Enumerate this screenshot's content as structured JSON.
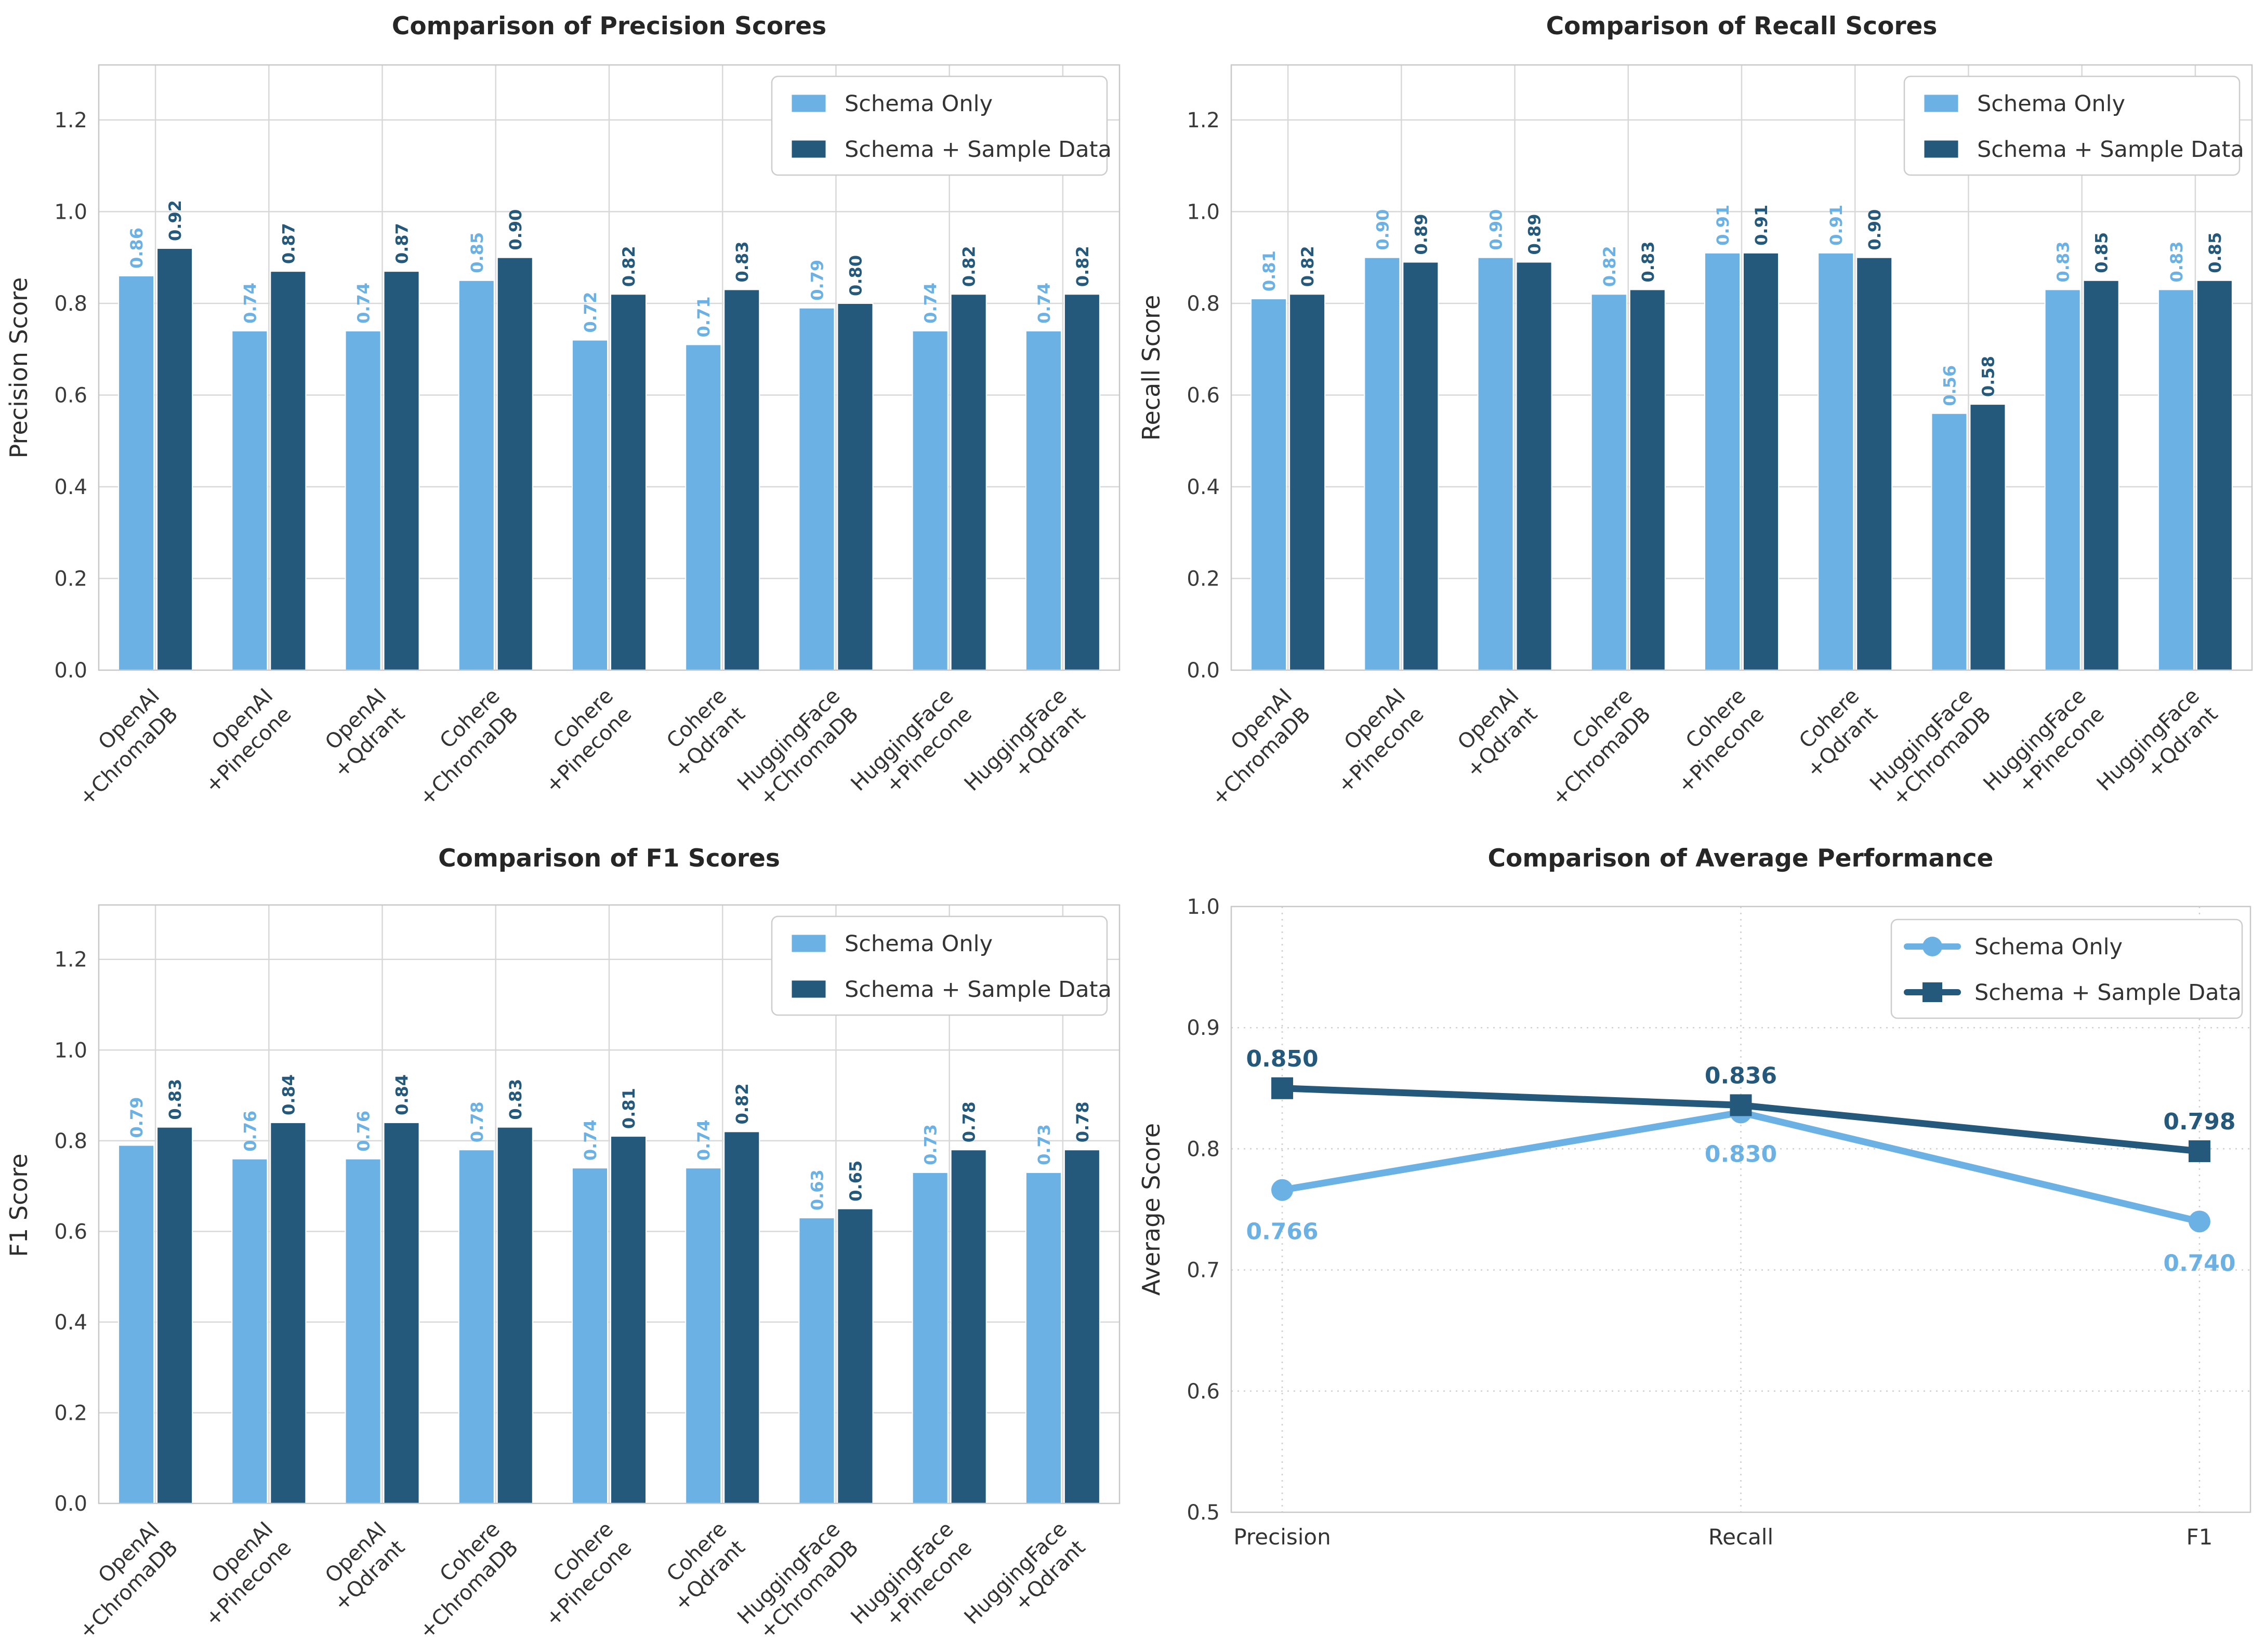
{
  "colors": {
    "schema_only": "#6bb1e3",
    "schema_sample": "#25597b",
    "grid": "#d8d8d8",
    "grid_dashed": "#cfcfcf",
    "spine": "#c8c8c8",
    "tick_text": "#3b3b3b",
    "title_text": "#262626",
    "background": "#ffffff",
    "legend_border": "#cccccc"
  },
  "legend_labels": [
    "Schema Only",
    "Schema + Sample Data"
  ],
  "shared_categories": [
    [
      "OpenAI",
      "+ChromaDB"
    ],
    [
      "OpenAI",
      "+Pinecone"
    ],
    [
      "OpenAI",
      "+Qdrant"
    ],
    [
      "Cohere",
      "+ChromaDB"
    ],
    [
      "Cohere",
      "+Pinecone"
    ],
    [
      "Cohere",
      "+Qdrant"
    ],
    [
      "HuggingFace",
      "+ChromaDB"
    ],
    [
      "HuggingFace",
      "+Pinecone"
    ],
    [
      "HuggingFace",
      "+Qdrant"
    ]
  ],
  "chart_data": [
    {
      "type": "bar",
      "title": "Comparison of Precision Scores",
      "ylabel": "Precision Score",
      "ylim": [
        0,
        1.32
      ],
      "yticks": [
        0.0,
        0.2,
        0.4,
        0.6,
        0.8,
        1.0,
        1.2
      ],
      "label_decimals": 2,
      "legend_position": "upper right",
      "grid": "solid",
      "categories": [
        [
          "OpenAI",
          "+ChromaDB"
        ],
        [
          "OpenAI",
          "+Pinecone"
        ],
        [
          "OpenAI",
          "+Qdrant"
        ],
        [
          "Cohere",
          "+ChromaDB"
        ],
        [
          "Cohere",
          "+Pinecone"
        ],
        [
          "Cohere",
          "+Qdrant"
        ],
        [
          "HuggingFace",
          "+ChromaDB"
        ],
        [
          "HuggingFace",
          "+Pinecone"
        ],
        [
          "HuggingFace",
          "+Qdrant"
        ]
      ],
      "series": [
        {
          "name": "Schema Only",
          "values": [
            0.86,
            0.74,
            0.74,
            0.85,
            0.72,
            0.71,
            0.79,
            0.74,
            0.74
          ]
        },
        {
          "name": "Schema + Sample Data",
          "values": [
            0.92,
            0.87,
            0.87,
            0.9,
            0.82,
            0.83,
            0.8,
            0.82,
            0.82
          ]
        }
      ]
    },
    {
      "type": "bar",
      "title": "Comparison of Recall Scores",
      "ylabel": "Recall Score",
      "ylim": [
        0,
        1.32
      ],
      "yticks": [
        0.0,
        0.2,
        0.4,
        0.6,
        0.8,
        1.0,
        1.2
      ],
      "label_decimals": 2,
      "legend_position": "upper right",
      "grid": "solid",
      "categories": [
        [
          "OpenAI",
          "+ChromaDB"
        ],
        [
          "OpenAI",
          "+Pinecone"
        ],
        [
          "OpenAI",
          "+Qdrant"
        ],
        [
          "Cohere",
          "+ChromaDB"
        ],
        [
          "Cohere",
          "+Pinecone"
        ],
        [
          "Cohere",
          "+Qdrant"
        ],
        [
          "HuggingFace",
          "+ChromaDB"
        ],
        [
          "HuggingFace",
          "+Pinecone"
        ],
        [
          "HuggingFace",
          "+Qdrant"
        ]
      ],
      "series": [
        {
          "name": "Schema Only",
          "values": [
            0.81,
            0.9,
            0.9,
            0.82,
            0.91,
            0.91,
            0.56,
            0.83,
            0.83
          ]
        },
        {
          "name": "Schema + Sample Data",
          "values": [
            0.82,
            0.89,
            0.89,
            0.83,
            0.91,
            0.9,
            0.58,
            0.85,
            0.85
          ]
        }
      ]
    },
    {
      "type": "bar",
      "title": "Comparison of F1 Scores",
      "ylabel": "F1 Score",
      "ylim": [
        0,
        1.32
      ],
      "yticks": [
        0.0,
        0.2,
        0.4,
        0.6,
        0.8,
        1.0,
        1.2
      ],
      "label_decimals": 2,
      "legend_position": "upper right",
      "grid": "solid",
      "categories": [
        [
          "OpenAI",
          "+ChromaDB"
        ],
        [
          "OpenAI",
          "+Pinecone"
        ],
        [
          "OpenAI",
          "+Qdrant"
        ],
        [
          "Cohere",
          "+ChromaDB"
        ],
        [
          "Cohere",
          "+Pinecone"
        ],
        [
          "Cohere",
          "+Qdrant"
        ],
        [
          "HuggingFace",
          "+ChromaDB"
        ],
        [
          "HuggingFace",
          "+Pinecone"
        ],
        [
          "HuggingFace",
          "+Qdrant"
        ]
      ],
      "series": [
        {
          "name": "Schema Only",
          "values": [
            0.79,
            0.76,
            0.76,
            0.78,
            0.74,
            0.74,
            0.63,
            0.73,
            0.73
          ]
        },
        {
          "name": "Schema + Sample Data",
          "values": [
            0.83,
            0.84,
            0.84,
            0.83,
            0.81,
            0.82,
            0.65,
            0.78,
            0.78
          ]
        }
      ]
    },
    {
      "type": "line",
      "title": "Comparison of Average Performance",
      "ylabel": "Average Score",
      "ylim": [
        0.5,
        1.0
      ],
      "yticks": [
        0.5,
        0.6,
        0.7,
        0.8,
        0.9,
        1.0
      ],
      "label_decimals": 3,
      "legend_position": "upper right",
      "grid": "dashed",
      "categories": [
        "Precision",
        "Recall",
        "F1"
      ],
      "series": [
        {
          "name": "Schema Only",
          "marker": "circle",
          "label_side": "below",
          "values": [
            0.766,
            0.83,
            0.74
          ]
        },
        {
          "name": "Schema + Sample Data",
          "marker": "square",
          "label_side": "above",
          "values": [
            0.85,
            0.836,
            0.798
          ]
        }
      ]
    }
  ]
}
